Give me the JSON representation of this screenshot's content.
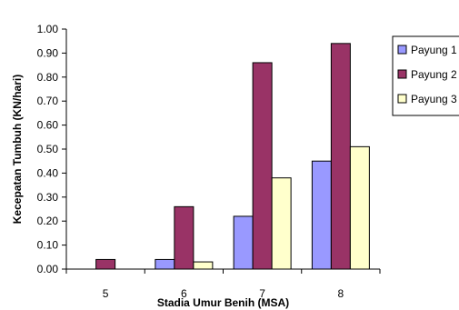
{
  "chart_data": {
    "type": "bar",
    "title": "",
    "xlabel": "Stadia Umur Benih (MSA)",
    "ylabel": "Kecepatan Tumbuh (KN/hari)",
    "categories": [
      "5",
      "6",
      "7",
      "8"
    ],
    "ylim": [
      0,
      1.0
    ],
    "yticks": [
      "0.00",
      "0.10",
      "0.20",
      "0.30",
      "0.40",
      "0.50",
      "0.60",
      "0.70",
      "0.80",
      "0.90",
      "1.00"
    ],
    "grid": false,
    "legend_position": "right",
    "series": [
      {
        "name": "Payung 1",
        "color": "#9999FF",
        "values": [
          0.0,
          0.04,
          0.22,
          0.45
        ]
      },
      {
        "name": "Payung 2",
        "color": "#993366",
        "values": [
          0.04,
          0.26,
          0.86,
          0.94
        ]
      },
      {
        "name": "Payung 3",
        "color": "#FFFFCC",
        "values": [
          0.0,
          0.03,
          0.38,
          0.51
        ]
      }
    ]
  }
}
